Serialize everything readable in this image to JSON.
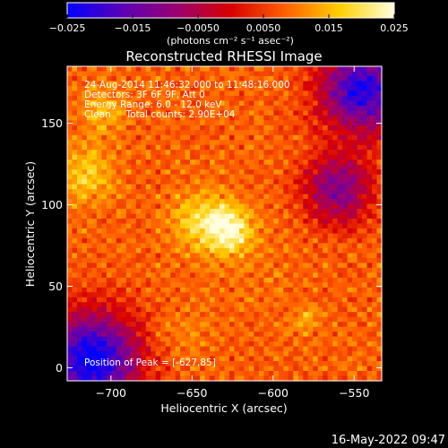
{
  "chart_data": {
    "type": "heatmap",
    "title": "Reconstructed RHESSI Image",
    "xlabel": "Heliocentric X (arcsec)",
    "ylabel": "Heliocentric Y (arcsec)",
    "xlim": [
      -727,
      -533
    ],
    "ylim": [
      -8,
      185
    ],
    "x_ticks": [
      -700,
      -650,
      -600,
      -550
    ],
    "x_tick_labels": [
      "−700",
      "−650",
      "−600",
      "−550"
    ],
    "y_ticks": [
      0,
      50,
      100,
      150
    ],
    "y_tick_labels": [
      "0",
      "50",
      "100",
      "150"
    ],
    "colorbar": {
      "range": [
        -0.025,
        0.025
      ],
      "ticks": [
        -0.025,
        -0.015,
        -0.005,
        0.005,
        0.015,
        0.025
      ],
      "tick_labels": [
        "−0.025",
        "−0.015",
        "−0.0050",
        "0.0050",
        "0.015",
        "0.025"
      ],
      "unit_label": "(photons cm⁻² s⁻¹ asec⁻²)",
      "colors": [
        "#0000ff",
        "#5a00b8",
        "#9a0070",
        "#d80000",
        "#ff6000",
        "#ffd000",
        "#ffffe0"
      ]
    },
    "sources": [
      {
        "x": -627,
        "y": 85,
        "peak": 0.025,
        "sigma": 10
      },
      {
        "x": -645,
        "y": 90,
        "peak": 0.019,
        "sigma": 13
      },
      {
        "x": -715,
        "y": 120,
        "peak": 0.018,
        "sigma": 12
      },
      {
        "x": -705,
        "y": 158,
        "peak": 0.016,
        "sigma": 10
      },
      {
        "x": -580,
        "y": 30,
        "peak": 0.015,
        "sigma": 6
      },
      {
        "x": -655,
        "y": 20,
        "peak": 0.011,
        "sigma": 12
      },
      {
        "x": -610,
        "y": 60,
        "peak": 0.01,
        "sigma": 15
      }
    ],
    "dark_regions": [
      {
        "x": -712,
        "y": 5,
        "depth": -0.026,
        "sigma": 20
      },
      {
        "x": -545,
        "y": 170,
        "depth": -0.022,
        "sigma": 18
      },
      {
        "x": -560,
        "y": 110,
        "depth": -0.012,
        "sigma": 15
      }
    ],
    "background": 0.008
  },
  "annotations": {
    "time_range": "24-Aug-2014 11:46:32.000 to 11:48:16.000",
    "detectors": "Detectors: 3F 6F 9F, Att 0",
    "energy_range": "Energy Range: 6.0 - 12.0 keV",
    "clean_counts": "Clean     Total counts: 2.90E+04",
    "peak_position": "Position of Peak = [-627,85]"
  },
  "footer": {
    "date_stamp": "16-May-2022 09:47"
  }
}
